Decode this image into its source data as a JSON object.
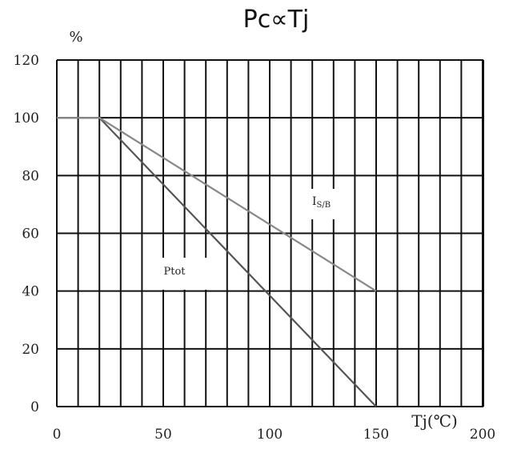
{
  "chart_data": {
    "type": "line",
    "title": "Pc∝Tj",
    "ylabel": "%",
    "xlabel": "Tj(℃)",
    "xlim": [
      0,
      200
    ],
    "ylim": [
      0,
      120
    ],
    "x_ticks": [
      "0",
      "50",
      "100",
      "150",
      "200"
    ],
    "y_ticks": [
      "0",
      "20",
      "40",
      "60",
      "80",
      "100",
      "120"
    ],
    "grid": true,
    "series": [
      {
        "name": "Ptot",
        "x": [
          0,
          20,
          150
        ],
        "y": [
          100,
          100,
          0
        ],
        "color": "#555555"
      },
      {
        "name": "IS/B",
        "x": [
          0,
          20,
          150
        ],
        "y": [
          100,
          100,
          40
        ],
        "color": "#888888"
      }
    ],
    "annotations": {
      "ptot_label": "Ptot",
      "isb_main": "I",
      "isb_sub": "S/B"
    }
  }
}
